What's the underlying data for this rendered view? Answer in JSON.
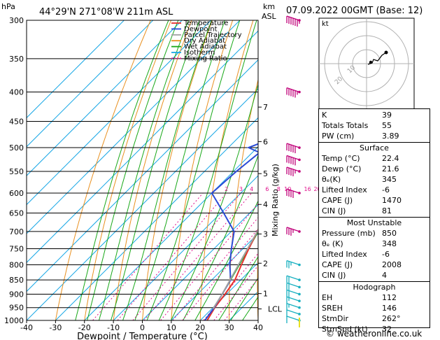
{
  "header": {
    "p_unit": "hPa",
    "location": "44°29'N  271°08'W  211m  ASL",
    "km_unit": "km",
    "asl": "ASL",
    "datetime": "07.09.2022  00GMT  (Base: 12)"
  },
  "legend": [
    "Temperature",
    "Dewpoint",
    "Parcel Trajectory",
    "Dry Adiabat",
    "Wet Adiabat",
    "Isotherm",
    "Mixing Ratio"
  ],
  "colors": {
    "temperature": "#e8302c",
    "dewpoint": "#2a4bd7",
    "parcel": "#a0a0a0",
    "dry_adiabat": "#e89020",
    "wet_adiabat": "#18a818",
    "isotherm": "#1aa8e6",
    "mixing_ratio": "#e0108c",
    "wind_upper": "#c0007a",
    "wind_lower": "#18b0c0"
  },
  "chart_data": {
    "type": "skew-t",
    "xlabel": "Dewpoint / Temperature (°C)",
    "ylabel_right": "Mixing Ratio (g/kg)",
    "xlim": [
      -40,
      40
    ],
    "ylim": [
      1000,
      300
    ],
    "x_ticks": [
      -40,
      -30,
      -20,
      -10,
      0,
      10,
      20,
      30,
      40
    ],
    "pressure_levels": [
      300,
      350,
      400,
      450,
      500,
      550,
      600,
      650,
      700,
      750,
      800,
      850,
      900,
      950,
      1000
    ],
    "km_ticks": [
      {
        "label": "1",
        "p": 898
      },
      {
        "label": "2",
        "p": 795
      },
      {
        "label": "3",
        "p": 707
      },
      {
        "label": "4",
        "p": 628
      },
      {
        "label": "5",
        "p": 555
      },
      {
        "label": "6",
        "p": 488
      },
      {
        "label": "7",
        "p": 425
      }
    ],
    "lcl": {
      "label": "LCL",
      "p": 955
    },
    "mixing_ratio_labels": [
      {
        "label": "2",
        "w": 2
      },
      {
        "label": "3",
        "w": 3
      },
      {
        "label": "4",
        "w": 4
      },
      {
        "label": "6",
        "w": 6
      },
      {
        "label": "8",
        "w": 8
      },
      {
        "label": "10",
        "w": 10
      },
      {
        "label": "16",
        "w": 16
      },
      {
        "label": "20",
        "w": 20
      },
      {
        "label": "25",
        "w": 25
      }
    ],
    "series": [
      {
        "name": "Temperature",
        "points": [
          [
            1000,
            22.4
          ],
          [
            950,
            20.6
          ],
          [
            900,
            19.5
          ],
          [
            850,
            18.0
          ],
          [
            800,
            15.0
          ],
          [
            750,
            12.0
          ],
          [
            700,
            9.0
          ],
          [
            650,
            5.5
          ],
          [
            600,
            2.0
          ],
          [
            550,
            -2.0
          ],
          [
            500,
            -6.5
          ],
          [
            450,
            -12.0
          ],
          [
            400,
            -18.5
          ],
          [
            350,
            -27.0
          ],
          [
            300,
            -36.0
          ]
        ]
      },
      {
        "name": "Dewpoint",
        "points": [
          [
            1000,
            21.6
          ],
          [
            950,
            20.4
          ],
          [
            900,
            18.5
          ],
          [
            850,
            16.5
          ],
          [
            800,
            11.0
          ],
          [
            750,
            6.0
          ],
          [
            700,
            1.0
          ],
          [
            650,
            -9.0
          ],
          [
            600,
            -20.0
          ],
          [
            550,
            -19.0
          ],
          [
            510,
            -17.5
          ],
          [
            500,
            -23.0
          ],
          [
            465,
            -13.0
          ],
          [
            450,
            -18.5
          ],
          [
            420,
            -28.0
          ],
          [
            400,
            -35.0
          ],
          [
            380,
            -40.0
          ],
          [
            350,
            -45.0
          ],
          [
            300,
            -55.0
          ]
        ]
      },
      {
        "name": "Parcel Trajectory",
        "points": [
          [
            955,
            20.4
          ],
          [
            900,
            18.5
          ],
          [
            850,
            16.3
          ],
          [
            800,
            14.0
          ],
          [
            750,
            11.6
          ],
          [
            700,
            9.0
          ],
          [
            650,
            6.2
          ],
          [
            600,
            3.2
          ],
          [
            550,
            -0.2
          ],
          [
            500,
            -4.0
          ],
          [
            450,
            -8.5
          ],
          [
            400,
            -14.0
          ],
          [
            375,
            -17.5
          ]
        ]
      }
    ],
    "wind_barbs": [
      {
        "p": 300,
        "dir": 250,
        "spd": 65
      },
      {
        "p": 400,
        "dir": 255,
        "spd": 55
      },
      {
        "p": 500,
        "dir": 260,
        "spd": 50
      },
      {
        "p": 525,
        "dir": 260,
        "spd": 50
      },
      {
        "p": 550,
        "dir": 262,
        "spd": 45
      },
      {
        "p": 600,
        "dir": 265,
        "spd": 40
      },
      {
        "p": 700,
        "dir": 265,
        "spd": 35
      },
      {
        "p": 800,
        "dir": 255,
        "spd": 25
      },
      {
        "p": 850,
        "dir": 250,
        "spd": 20
      },
      {
        "p": 875,
        "dir": 245,
        "spd": 20
      },
      {
        "p": 900,
        "dir": 240,
        "spd": 20
      },
      {
        "p": 925,
        "dir": 230,
        "spd": 15
      },
      {
        "p": 950,
        "dir": 220,
        "spd": 15
      },
      {
        "p": 975,
        "dir": 210,
        "spd": 10
      },
      {
        "p": 1000,
        "dir": 200,
        "spd": 10
      }
    ],
    "hodograph": {
      "unit_label": "kt",
      "ring_labels": [
        "10",
        "20"
      ],
      "points": [
        [
          2,
          -1
        ],
        [
          8,
          1
        ],
        [
          10,
          6
        ],
        [
          16,
          4
        ],
        [
          22,
          12
        ],
        [
          28,
          16
        ]
      ]
    }
  },
  "indices": {
    "k_label": "K",
    "k": "39",
    "tt_label": "Totals Totals",
    "tt": "55",
    "pw_label": "PW (cm)",
    "pw": "3.89",
    "surface": {
      "title": "Surface",
      "rows": [
        {
          "k": "Temp (°C)",
          "v": "22.4"
        },
        {
          "k": "Dewp (°C)",
          "v": "21.6"
        },
        {
          "k": "θₑ(K)",
          "v": "345"
        },
        {
          "k": "Lifted Index",
          "v": "-6"
        },
        {
          "k": "CAPE (J)",
          "v": "1470"
        },
        {
          "k": "CIN (J)",
          "v": "81"
        }
      ]
    },
    "most_unstable": {
      "title": "Most Unstable",
      "rows": [
        {
          "k": "Pressure (mb)",
          "v": "850"
        },
        {
          "k": "θₑ (K)",
          "v": "348"
        },
        {
          "k": "Lifted Index",
          "v": "-6"
        },
        {
          "k": "CAPE (J)",
          "v": "2008"
        },
        {
          "k": "CIN (J)",
          "v": "4"
        }
      ]
    },
    "hodograph": {
      "title": "Hodograph",
      "rows": [
        {
          "k": "EH",
          "v": "112"
        },
        {
          "k": "SREH",
          "v": "146"
        },
        {
          "k": "StmDir",
          "v": "262°"
        },
        {
          "k": "StmSpd (kt)",
          "v": "32"
        }
      ]
    }
  },
  "footer": {
    "credit": "© weatheronline.co.uk"
  }
}
